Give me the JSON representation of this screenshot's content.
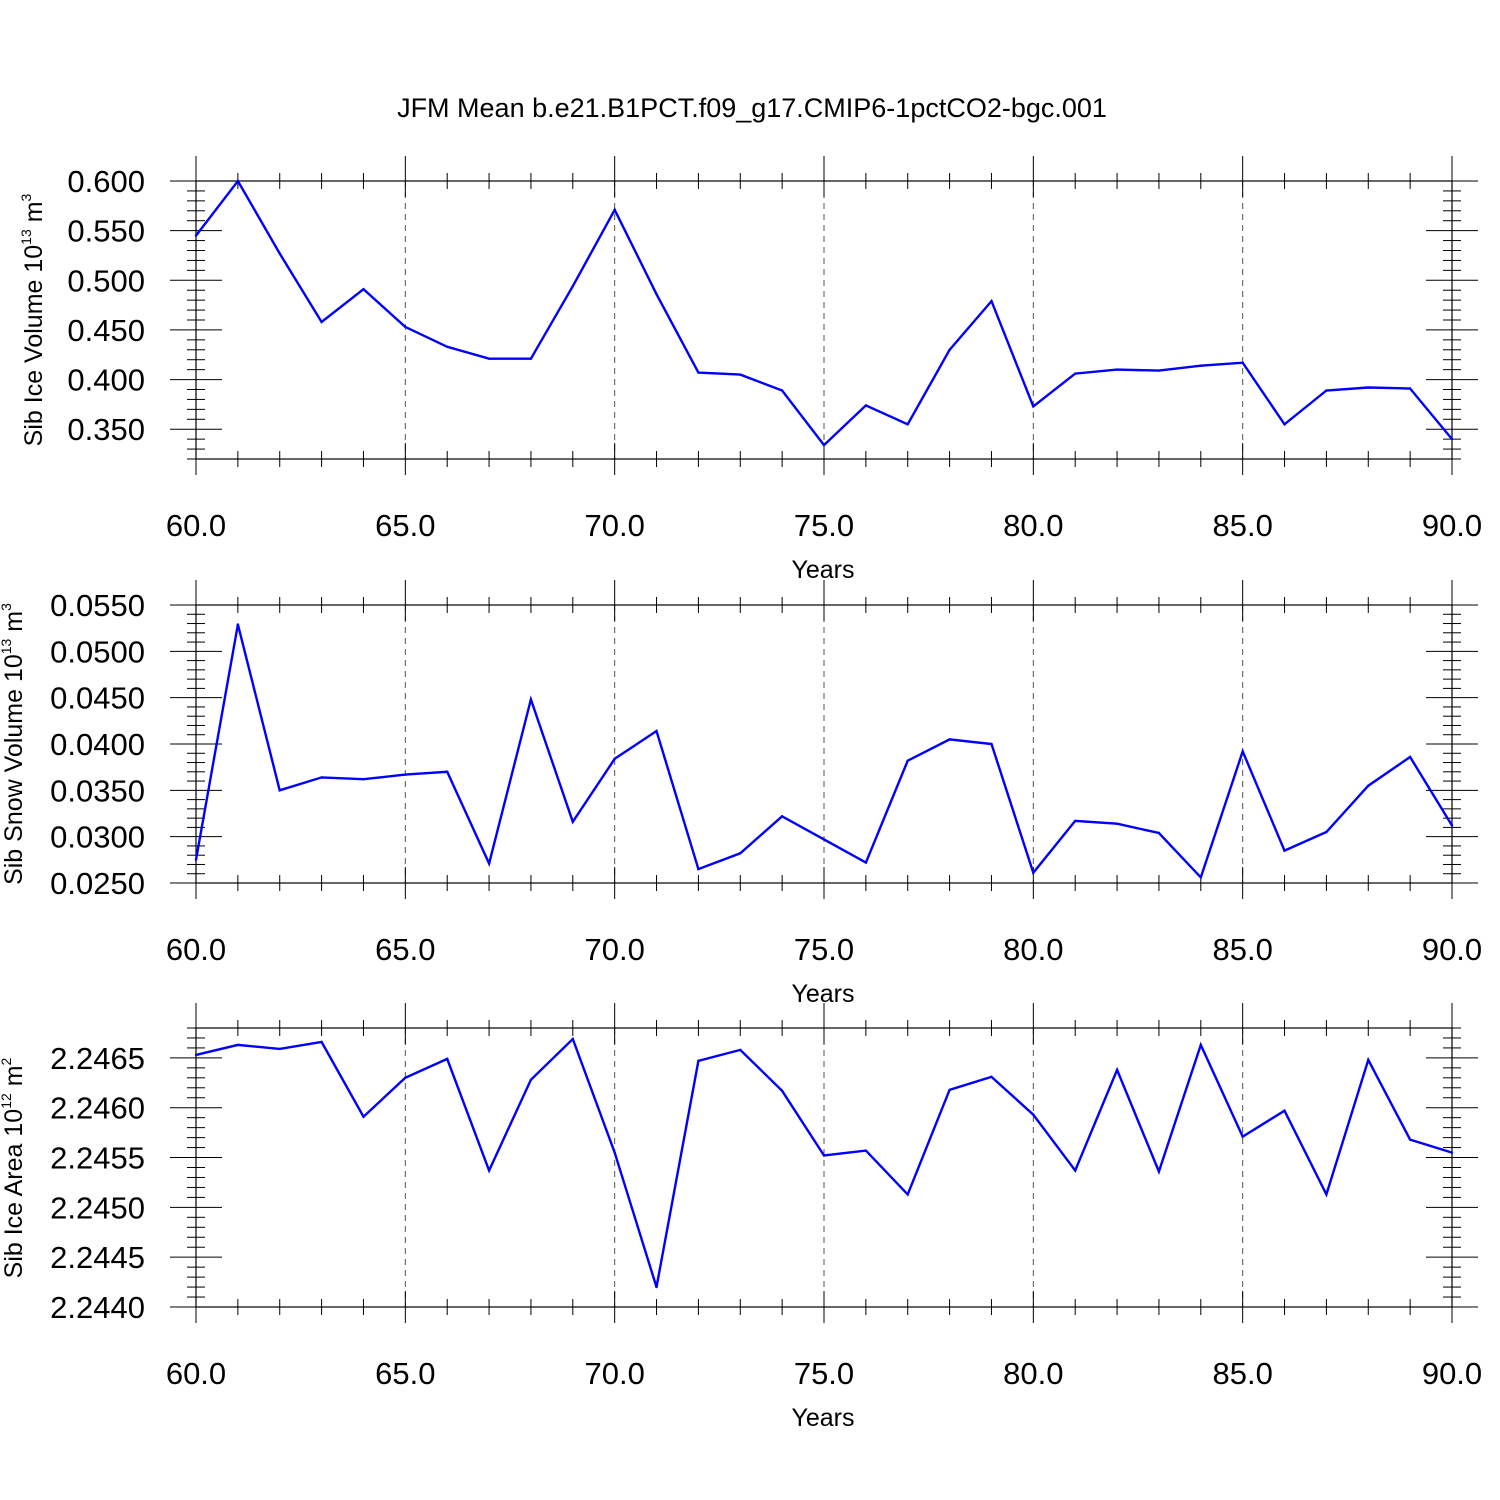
{
  "title": "JFM Mean b.e21.B1PCT.f09_g17.CMIP6-1pctCO2-bgc.001",
  "chart_data": [
    {
      "type": "line",
      "xlabel": "Years",
      "ylabel": {
        "text": "Sib Ice Volume 10",
        "exp": "13",
        "unit": " m",
        "unit_exp": "3"
      },
      "xlim": [
        60,
        90
      ],
      "ylim": [
        0.32,
        0.6
      ],
      "x_ticks": [
        "60.0",
        "65.0",
        "70.0",
        "75.0",
        "80.0",
        "85.0",
        "90.0"
      ],
      "y_ticks": [
        "0.350",
        "0.400",
        "0.450",
        "0.500",
        "0.550",
        "0.600"
      ],
      "color": "#0000ff",
      "x": [
        60,
        61,
        62,
        63,
        64,
        65,
        66,
        67,
        68,
        69,
        70,
        71,
        72,
        73,
        74,
        75,
        76,
        77,
        78,
        79,
        80,
        81,
        82,
        83,
        84,
        85,
        86,
        87,
        88,
        89,
        90
      ],
      "values": [
        0.545,
        0.6,
        0.527,
        0.458,
        0.491,
        0.453,
        0.433,
        0.421,
        0.421,
        0.494,
        0.571,
        0.486,
        0.407,
        0.405,
        0.389,
        0.334,
        0.374,
        0.355,
        0.43,
        0.479,
        0.373,
        0.406,
        0.41,
        0.409,
        0.414,
        0.417,
        0.355,
        0.389,
        0.392,
        0.391,
        0.34
      ]
    },
    {
      "type": "line",
      "xlabel": "Years",
      "ylabel": {
        "text": "Sib Snow Volume 10",
        "exp": "13",
        "unit": " m",
        "unit_exp": "3"
      },
      "xlim": [
        60,
        90
      ],
      "ylim": [
        0.025,
        0.055
      ],
      "x_ticks": [
        "60.0",
        "65.0",
        "70.0",
        "75.0",
        "80.0",
        "85.0",
        "90.0"
      ],
      "y_ticks": [
        "0.0250",
        "0.0300",
        "0.0350",
        "0.0400",
        "0.0450",
        "0.0500",
        "0.0550"
      ],
      "color": "#0000ff",
      "x": [
        60,
        61,
        62,
        63,
        64,
        65,
        66,
        67,
        68,
        69,
        70,
        71,
        72,
        73,
        74,
        75,
        76,
        77,
        78,
        79,
        80,
        81,
        82,
        83,
        84,
        85,
        86,
        87,
        88,
        89,
        90
      ],
      "values": [
        0.0275,
        0.0529,
        0.035,
        0.0364,
        0.0362,
        0.0367,
        0.037,
        0.0271,
        0.0448,
        0.0316,
        0.0384,
        0.0414,
        0.0265,
        0.0282,
        0.0322,
        0.0297,
        0.0272,
        0.0382,
        0.0405,
        0.04,
        0.0261,
        0.0317,
        0.0314,
        0.0304,
        0.0256,
        0.0392,
        0.0285,
        0.0305,
        0.0355,
        0.0386,
        0.0312
      ]
    },
    {
      "type": "line",
      "xlabel": "Years",
      "ylabel": {
        "text": "Sib Ice Area 10",
        "exp": "12",
        "unit": " m",
        "unit_exp": "2"
      },
      "xlim": [
        60,
        90
      ],
      "ylim": [
        2.244,
        2.2468
      ],
      "x_ticks": [
        "60.0",
        "65.0",
        "70.0",
        "75.0",
        "80.0",
        "85.0",
        "90.0"
      ],
      "y_ticks": [
        "2.2440",
        "2.2445",
        "2.2450",
        "2.2455",
        "2.2460",
        "2.2465"
      ],
      "color": "#0000ff",
      "x": [
        60,
        61,
        62,
        63,
        64,
        65,
        66,
        67,
        68,
        69,
        70,
        71,
        72,
        73,
        74,
        75,
        76,
        77,
        78,
        79,
        80,
        81,
        82,
        83,
        84,
        85,
        86,
        87,
        88,
        89,
        90
      ],
      "values": [
        2.24653,
        2.24663,
        2.24659,
        2.24666,
        2.24591,
        2.2463,
        2.24649,
        2.24537,
        2.24628,
        2.24669,
        2.24555,
        2.2442,
        2.24647,
        2.24658,
        2.24617,
        2.24552,
        2.24557,
        2.24513,
        2.24618,
        2.24631,
        2.24593,
        2.24537,
        2.24638,
        2.24536,
        2.24663,
        2.24571,
        2.24597,
        2.24513,
        2.24648,
        2.24568,
        2.24555
      ]
    }
  ]
}
